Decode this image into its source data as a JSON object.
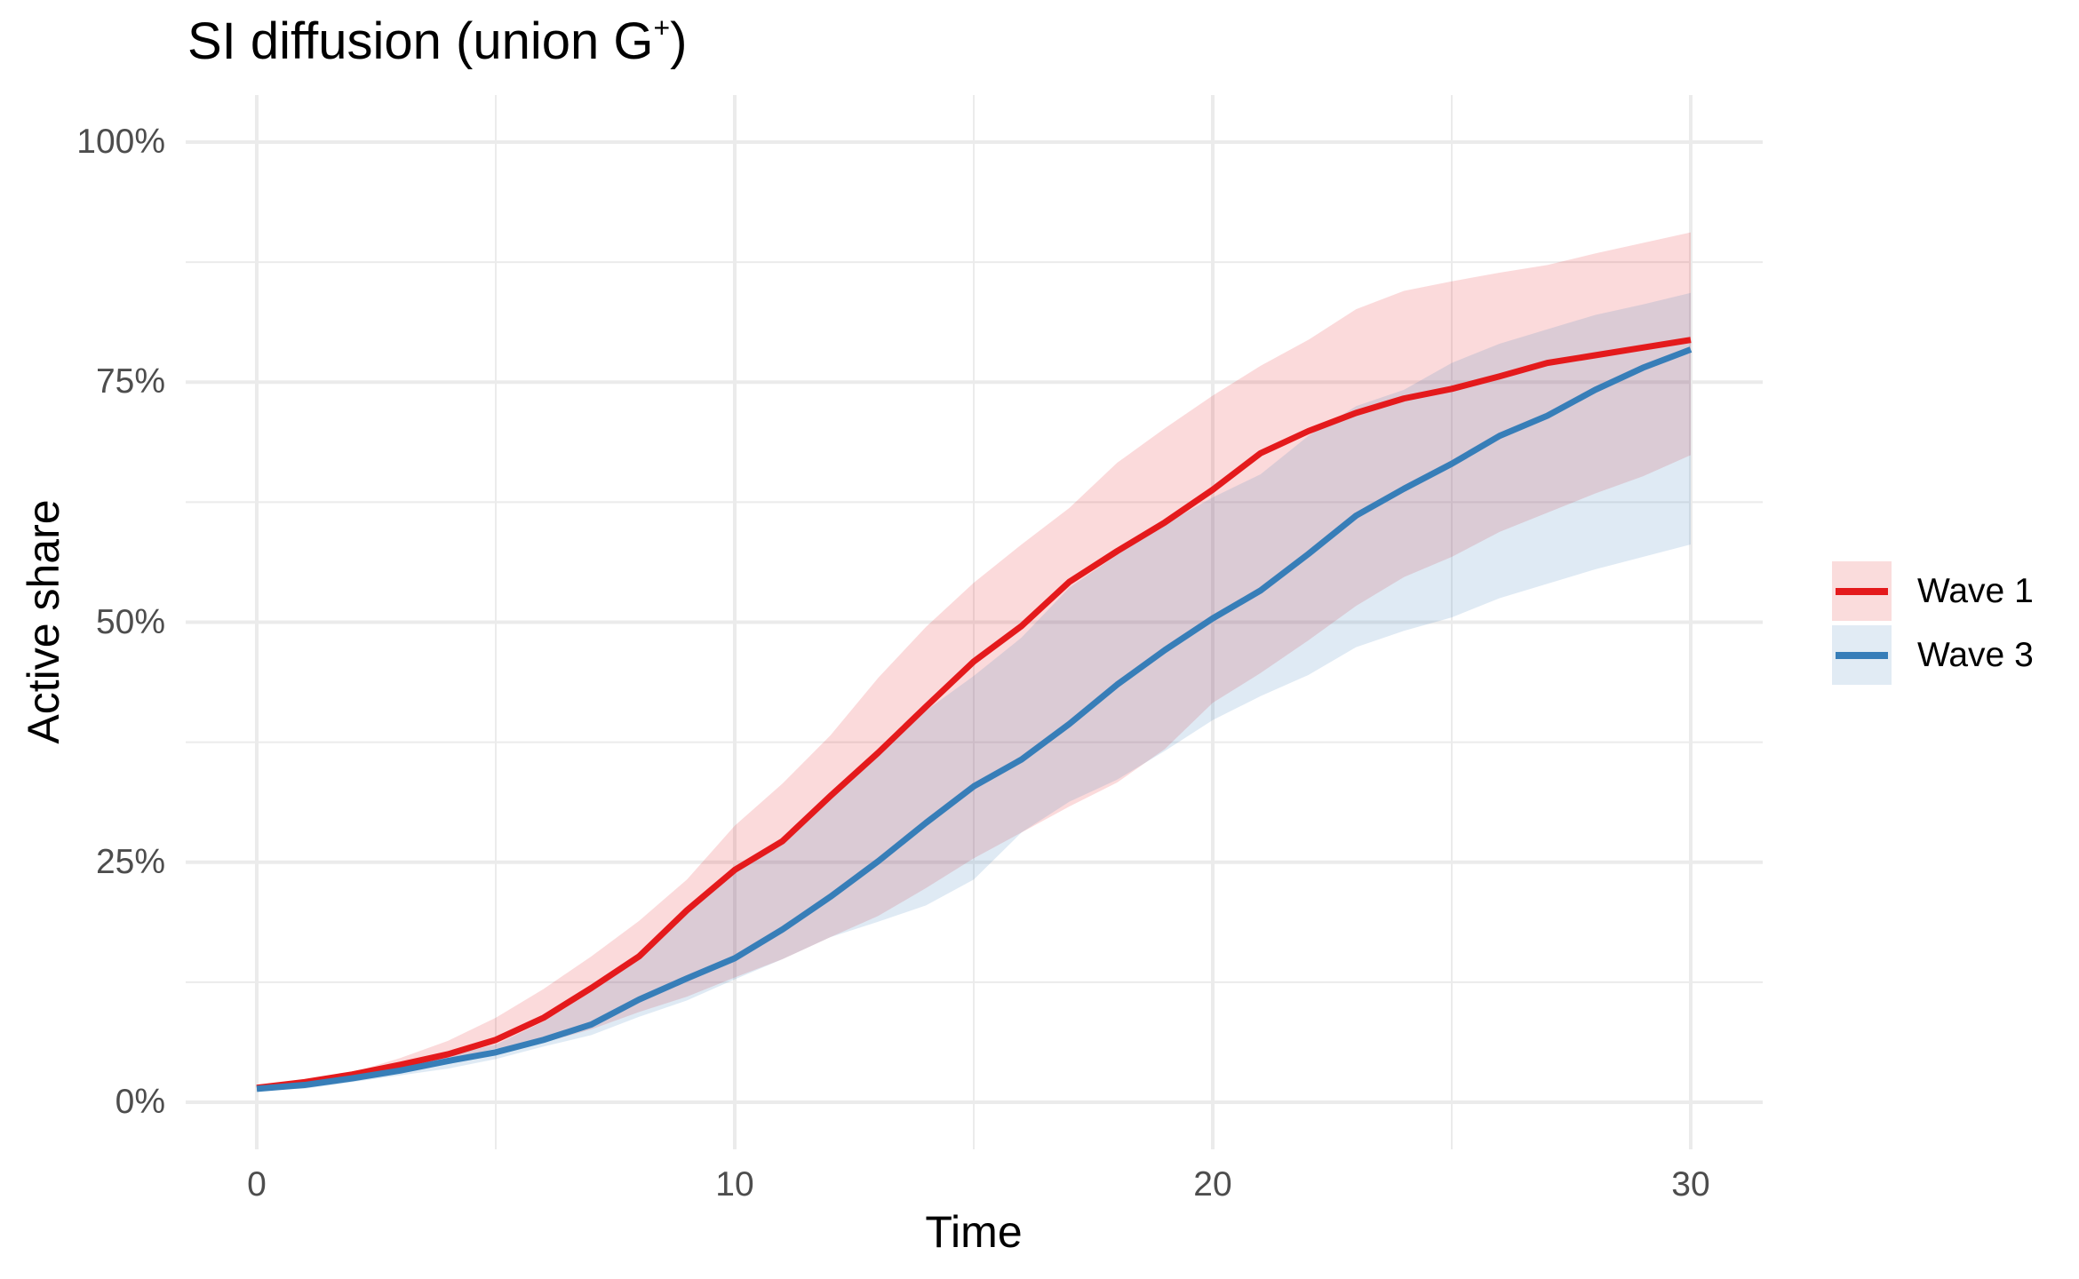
{
  "chart_data": {
    "type": "line",
    "title": "SI diffusion (union G",
    "title_superscript": "+",
    "title_suffix": ")",
    "xlabel": "Time",
    "ylabel": "Active share",
    "xlim": [
      -2.2,
      31.2
    ],
    "ylim": [
      -5,
      105
    ],
    "x_ticks": [
      0,
      10,
      20,
      30
    ],
    "x_tick_labels": [
      "0",
      "10",
      "20",
      "30"
    ],
    "x_minor_ticks": [
      5,
      15,
      25
    ],
    "y_ticks": [
      0,
      25,
      50,
      75,
      100
    ],
    "y_tick_labels": [
      "0%",
      "25%",
      "50%",
      "75%",
      "100%"
    ],
    "y_minor_ticks": [
      12.5,
      37.5,
      62.5,
      87.5
    ],
    "grid": true,
    "legend_position": "right",
    "x": [
      0,
      1,
      2,
      3,
      4,
      5,
      6,
      7,
      8,
      9,
      10,
      11,
      12,
      13,
      14,
      15,
      16,
      17,
      18,
      19,
      20,
      21,
      22,
      23,
      24,
      25,
      26,
      27,
      28,
      29,
      30
    ],
    "series": [
      {
        "name": "Wave 1",
        "color": "#E41A1C",
        "band_color": "#E41A1C",
        "values": [
          1.5,
          2.1,
          2.9,
          3.9,
          5.0,
          6.5,
          8.8,
          11.9,
          15.2,
          20.0,
          24.2,
          27.2,
          31.9,
          36.4,
          41.2,
          45.9,
          49.6,
          54.2,
          57.4,
          60.4,
          63.8,
          67.6,
          69.9,
          71.8,
          73.3,
          74.3,
          75.6,
          77.0,
          77.8,
          78.6,
          79.4
        ],
        "upper": [
          1.6,
          2.3,
          3.1,
          4.6,
          6.4,
          8.8,
          11.8,
          15.2,
          18.9,
          23.2,
          28.8,
          33.2,
          38.2,
          44.2,
          49.5,
          54.1,
          58.1,
          61.9,
          66.6,
          70.2,
          73.6,
          76.7,
          79.4,
          82.6,
          84.5,
          85.5,
          86.4,
          87.2,
          88.4,
          89.5,
          90.6
        ],
        "lower": [
          1.4,
          1.9,
          2.6,
          3.4,
          4.4,
          5.6,
          6.2,
          7.6,
          9.4,
          11.0,
          13.0,
          14.9,
          17.2,
          19.4,
          22.3,
          25.4,
          28.1,
          30.8,
          33.3,
          36.8,
          41.6,
          44.7,
          48.1,
          51.7,
          54.7,
          56.8,
          59.4,
          61.4,
          63.4,
          65.2,
          67.4
        ]
      },
      {
        "name": "Wave 3",
        "color": "#377EB8",
        "band_color": "#377EB8",
        "values": [
          1.4,
          1.8,
          2.5,
          3.3,
          4.3,
          5.2,
          6.5,
          8.1,
          10.7,
          12.9,
          15.0,
          18.0,
          21.4,
          25.1,
          29.1,
          32.9,
          35.7,
          39.4,
          43.5,
          47.1,
          50.4,
          53.3,
          57.1,
          61.1,
          63.9,
          66.5,
          69.4,
          71.5,
          74.2,
          76.5,
          78.4
        ],
        "upper": [
          1.5,
          2.0,
          2.8,
          3.8,
          4.9,
          6.0,
          8.4,
          11.5,
          15.0,
          19.6,
          23.9,
          27.0,
          31.6,
          36.0,
          40.8,
          44.4,
          48.4,
          53.6,
          57.0,
          60.2,
          63.0,
          65.4,
          69.4,
          72.5,
          74.2,
          77.0,
          79.0,
          80.5,
          82.0,
          83.1,
          84.3
        ],
        "lower": [
          1.3,
          1.4,
          2.1,
          2.8,
          3.5,
          4.5,
          5.8,
          7.0,
          8.9,
          10.6,
          12.8,
          14.9,
          17.2,
          18.8,
          20.5,
          23.2,
          28.1,
          31.3,
          33.6,
          36.6,
          39.8,
          42.3,
          44.5,
          47.4,
          49.1,
          50.5,
          52.5,
          54.0,
          55.5,
          56.8,
          58.1
        ]
      }
    ]
  },
  "legend": {
    "items": [
      {
        "label": "Wave 1",
        "color": "#E41A1C",
        "fill": "#fadcdc"
      },
      {
        "label": "Wave 3",
        "color": "#377EB8",
        "fill": "#e1ebf4"
      }
    ]
  },
  "style": {
    "grid_color": "#ebebeb",
    "tick_label_color": "#4d4d4d",
    "band_opacity": 0.16
  }
}
